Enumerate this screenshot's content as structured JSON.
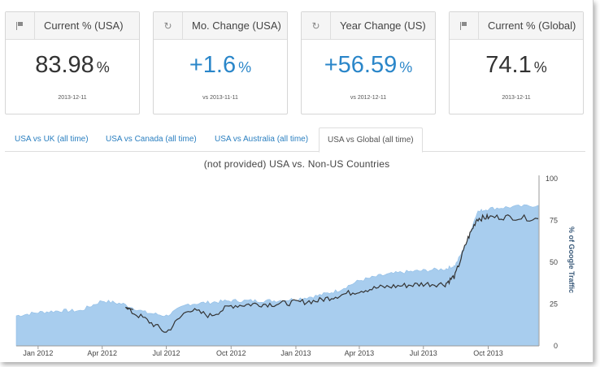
{
  "cards": [
    {
      "icon": "flag-icon",
      "title": "Current % (USA)",
      "value": "83.98",
      "unit": "%",
      "date": "2013-12-11",
      "color": "#333333"
    },
    {
      "icon": "refresh-icon",
      "title": "Mo. Change (USA)",
      "value": "+1.6",
      "unit": "%",
      "date": "vs 2013-11-11",
      "color": "#2a86c9"
    },
    {
      "icon": "refresh-icon",
      "title": "Year Change (US)",
      "value": "+56.59",
      "unit": "%",
      "date": "vs 2012-12-11",
      "color": "#2a86c9"
    },
    {
      "icon": "flag-icon",
      "title": "Current % (Global)",
      "value": "74.1",
      "unit": "%",
      "date": "2013-12-11",
      "color": "#333333"
    }
  ],
  "tabs": [
    {
      "label": "USA vs UK (all time)",
      "active": false
    },
    {
      "label": "USA vs Canada (all time)",
      "active": false
    },
    {
      "label": "USA vs Australia (all time)",
      "active": false
    },
    {
      "label": "USA vs Global (all time)",
      "active": true
    }
  ],
  "chart_data": {
    "type": "area",
    "title": "(not provided) USA vs. Non-US Countries",
    "ylabel": "% of Google Traffic",
    "ylim": [
      0,
      100
    ],
    "yticks": [
      0,
      25,
      50,
      75,
      100
    ],
    "xticks": [
      "Jan 2012",
      "Apr 2012",
      "Jul 2012",
      "Oct 2012",
      "Jan 2013",
      "Apr 2013",
      "Jul 2013",
      "Oct 2013"
    ],
    "grid": false,
    "colors": {
      "area": "#a8cdee",
      "line": "#333333"
    },
    "x": [
      "2011-12-01",
      "2012-01-01",
      "2012-02-01",
      "2012-03-01",
      "2012-04-01",
      "2012-05-01",
      "2012-06-01",
      "2012-07-01",
      "2012-08-01",
      "2012-09-01",
      "2012-10-01",
      "2012-11-01",
      "2012-12-01",
      "2013-01-01",
      "2013-02-01",
      "2013-03-01",
      "2013-04-01",
      "2013-05-01",
      "2013-06-01",
      "2013-07-01",
      "2013-08-01",
      "2013-08-15",
      "2013-09-01",
      "2013-09-15",
      "2013-10-01",
      "2013-11-01",
      "2013-12-11"
    ],
    "series": [
      {
        "kind": "area",
        "values": [
          18,
          20,
          21,
          21,
          27,
          25,
          20,
          18,
          25,
          26,
          27,
          27,
          27,
          28,
          30,
          33,
          39,
          42,
          44,
          45,
          46,
          48,
          62,
          80,
          82,
          83,
          84
        ]
      },
      {
        "kind": "line",
        "start": "2012-05-15",
        "values": [
          null,
          null,
          null,
          null,
          null,
          23,
          16,
          8,
          22,
          18,
          24,
          25,
          25,
          26,
          27,
          30,
          33,
          35,
          36,
          37,
          37,
          42,
          63,
          76,
          77,
          77,
          76
        ]
      }
    ]
  }
}
